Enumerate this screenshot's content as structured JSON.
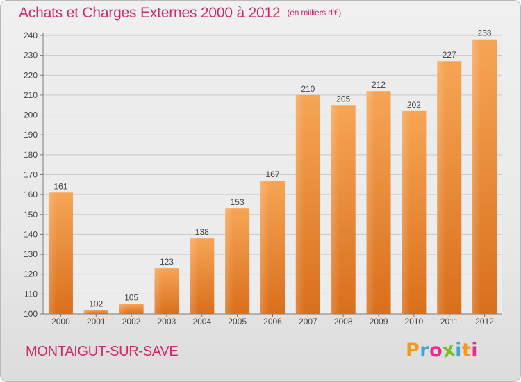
{
  "title": "Achats et Charges Externes 2000 à 2012",
  "unit": "(en milliers d'€)",
  "commune": "MONTAIGUT-SUR-SAVE",
  "logo": {
    "letters": [
      "P",
      "r",
      "o",
      "x",
      "i",
      "t",
      "i"
    ],
    "colors": [
      "#f39a1e",
      "#3aa6dd",
      "#e5318b",
      "#7cbd2a",
      "#3aa6dd",
      "#f39a1e",
      "#e5318b"
    ]
  },
  "colors": {
    "title": "#d12a6a",
    "bar_top": "#f6a555",
    "bar_bottom": "#d96f1c",
    "grid": "#c9c9c9"
  },
  "chart_data": {
    "type": "bar",
    "categories": [
      "2000",
      "2001",
      "2002",
      "2003",
      "2004",
      "2005",
      "2006",
      "2007",
      "2008",
      "2009",
      "2010",
      "2011",
      "2012"
    ],
    "values": [
      161,
      102,
      105,
      123,
      138,
      153,
      167,
      210,
      205,
      212,
      202,
      227,
      238
    ],
    "ylim": [
      100,
      240
    ],
    "yticks": [
      100,
      110,
      120,
      130,
      140,
      150,
      160,
      170,
      180,
      190,
      200,
      210,
      220,
      230,
      240
    ],
    "grid": true,
    "legend": "none"
  }
}
